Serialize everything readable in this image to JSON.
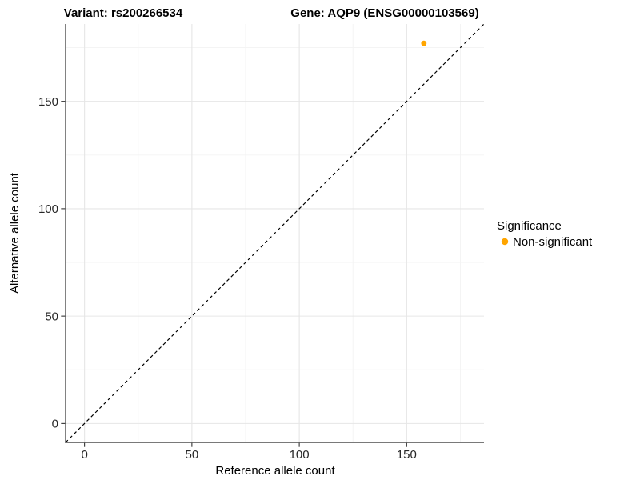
{
  "header": {
    "variant_title": "Variant: rs200266534",
    "gene_title": "Gene: AQP9 (ENSG00000103569)"
  },
  "chart_data": {
    "type": "scatter",
    "title": "Variant: rs200266534 / Gene: AQP9 (ENSG00000103569)",
    "xlabel": "Reference allele count",
    "ylabel": "Alternative allele count",
    "xlim": [
      -8.8,
      186
    ],
    "ylim": [
      -8.8,
      186
    ],
    "x_ticks": [
      0,
      50,
      100,
      150
    ],
    "y_ticks": [
      0,
      50,
      100,
      150
    ],
    "x_minor_ticks": [
      25,
      75,
      125,
      175
    ],
    "y_minor_ticks": [
      25,
      75,
      125,
      175
    ],
    "grid": "major+minor",
    "series": [
      {
        "name": "Non-significant",
        "color": "#FFA500",
        "points": [
          {
            "x": 158,
            "y": 177
          }
        ]
      }
    ],
    "reference_line": {
      "kind": "identity y=x",
      "style": "dashed",
      "color": "#000000"
    },
    "legend": {
      "title": "Significance",
      "position": "right",
      "entries": [
        {
          "label": "Non-significant",
          "color": "#FFA500"
        }
      ]
    },
    "colors": {
      "point": "#FFA500",
      "axis_line": "#4D4D4D",
      "tick_mark": "#333333",
      "grid_major": "#E6E6E6",
      "grid_minor": "#F3F3F3",
      "dashed_line": "#000000",
      "background": "#FFFFFF"
    }
  }
}
